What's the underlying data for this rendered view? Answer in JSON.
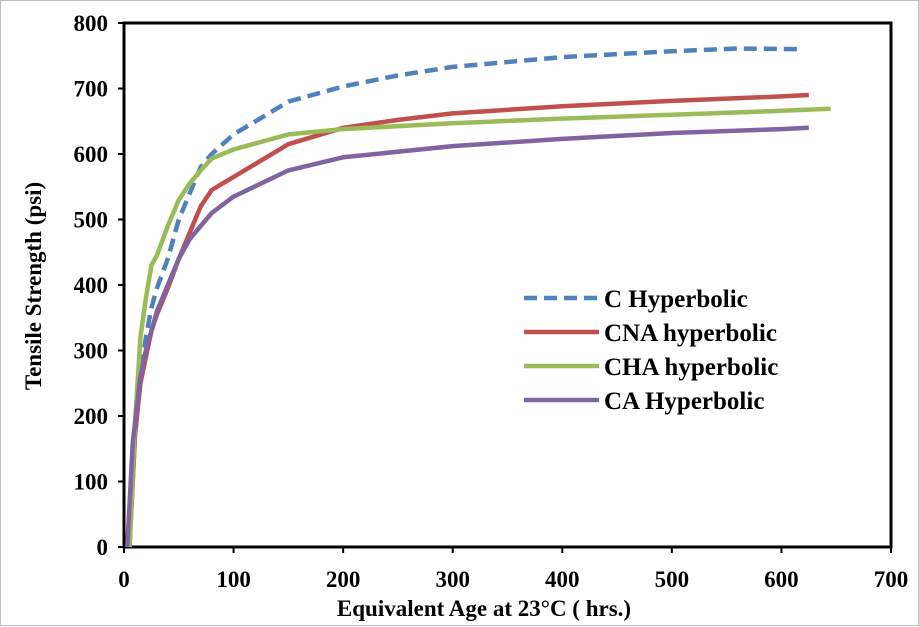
{
  "chart_data": {
    "type": "line",
    "xlabel": "Equivalent Age at 23°C ( hrs.)",
    "ylabel": "Tensile Strength  (psi)",
    "xlim": [
      0,
      700
    ],
    "ylim": [
      0,
      800
    ],
    "xticks": [
      "0",
      "100",
      "200",
      "300",
      "400",
      "500",
      "600",
      "700"
    ],
    "yticks": [
      "0",
      "100",
      "200",
      "300",
      "400",
      "500",
      "600",
      "700",
      "800"
    ],
    "grid": false,
    "legend_position": "center-right",
    "series": [
      {
        "name": "C Hyperbolic",
        "color": "#4f81bd",
        "style": "dashed",
        "points": [
          [
            5,
            0
          ],
          [
            10,
            170
          ],
          [
            15,
            260
          ],
          [
            20,
            320
          ],
          [
            25,
            365
          ],
          [
            30,
            395
          ],
          [
            40,
            440
          ],
          [
            50,
            500
          ],
          [
            60,
            540
          ],
          [
            70,
            580
          ],
          [
            80,
            600
          ],
          [
            100,
            630
          ],
          [
            150,
            680
          ],
          [
            200,
            703
          ],
          [
            250,
            720
          ],
          [
            300,
            733
          ],
          [
            400,
            748
          ],
          [
            500,
            757
          ],
          [
            560,
            761
          ],
          [
            620,
            760
          ]
        ]
      },
      {
        "name": "CNA hyperbolic",
        "color": "#c0504d",
        "style": "solid",
        "points": [
          [
            5,
            0
          ],
          [
            10,
            170
          ],
          [
            15,
            250
          ],
          [
            20,
            290
          ],
          [
            25,
            330
          ],
          [
            30,
            355
          ],
          [
            40,
            395
          ],
          [
            50,
            440
          ],
          [
            60,
            480
          ],
          [
            70,
            520
          ],
          [
            80,
            545
          ],
          [
            100,
            565
          ],
          [
            150,
            615
          ],
          [
            200,
            640
          ],
          [
            250,
            652
          ],
          [
            300,
            662
          ],
          [
            400,
            673
          ],
          [
            500,
            681
          ],
          [
            600,
            688
          ],
          [
            625,
            690
          ]
        ]
      },
      {
        "name": "CHA hyperbolic",
        "color": "#9bbb59",
        "style": "solid",
        "points": [
          [
            5,
            0
          ],
          [
            10,
            190
          ],
          [
            15,
            320
          ],
          [
            20,
            380
          ],
          [
            25,
            430
          ],
          [
            30,
            445
          ],
          [
            40,
            490
          ],
          [
            50,
            530
          ],
          [
            60,
            555
          ],
          [
            70,
            575
          ],
          [
            80,
            593
          ],
          [
            100,
            607
          ],
          [
            150,
            630
          ],
          [
            200,
            638
          ],
          [
            300,
            647
          ],
          [
            400,
            654
          ],
          [
            500,
            660
          ],
          [
            600,
            666
          ],
          [
            645,
            669
          ]
        ]
      },
      {
        "name": "CA Hyperbolic",
        "color": "#8064a2",
        "style": "solid",
        "points": [
          [
            3,
            0
          ],
          [
            8,
            160
          ],
          [
            15,
            260
          ],
          [
            20,
            300
          ],
          [
            25,
            330
          ],
          [
            30,
            360
          ],
          [
            40,
            400
          ],
          [
            50,
            440
          ],
          [
            60,
            470
          ],
          [
            70,
            490
          ],
          [
            80,
            510
          ],
          [
            100,
            535
          ],
          [
            150,
            575
          ],
          [
            200,
            595
          ],
          [
            300,
            612
          ],
          [
            400,
            623
          ],
          [
            500,
            632
          ],
          [
            600,
            638
          ],
          [
            625,
            640
          ]
        ]
      }
    ]
  }
}
